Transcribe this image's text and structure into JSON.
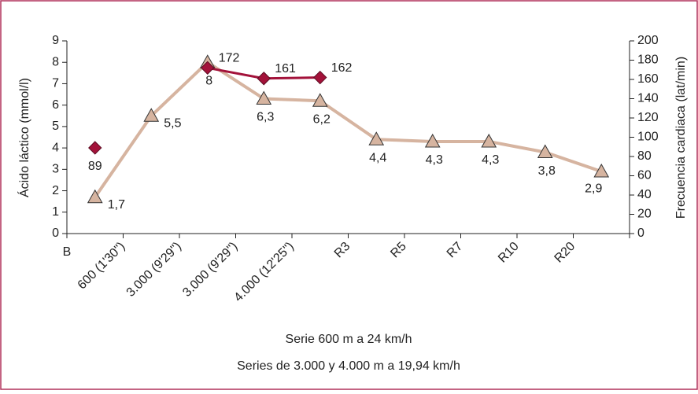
{
  "chart_data": {
    "type": "line",
    "categories": [
      "B",
      "600 (1'30\")",
      "3.000 (9'29\")",
      "3.000 (9'29\")",
      "4.000 (12'25\")",
      "R3",
      "R5",
      "R7",
      "R10",
      "R20"
    ],
    "ylabel": "Ácido láctico (mmol/l)",
    "y2label": "Frecuencia cardiaca (lat/min)",
    "ylim": [
      0,
      9
    ],
    "yticks": [
      0,
      1,
      2,
      3,
      4,
      5,
      6,
      7,
      8,
      9
    ],
    "y2lim": [
      0,
      200
    ],
    "y2ticks": [
      0,
      20,
      40,
      60,
      80,
      100,
      120,
      140,
      160,
      180,
      200
    ],
    "series": [
      {
        "name": "Ácido láctico",
        "color": "#d6b4a0",
        "marker": "triangle",
        "values": [
          1.7,
          5.5,
          8,
          6.3,
          6.2,
          4.4,
          4.3,
          4.3,
          3.8,
          2.9
        ],
        "value_labels": [
          "1,7",
          "5,5",
          "8",
          "6,3",
          "6,2",
          "4,4",
          "4,3",
          "4,3",
          "3,8",
          "2,9"
        ]
      },
      {
        "name": "Frecuencia cardiaca",
        "color": "#a3123a",
        "marker": "diamond",
        "axis": "y2",
        "values": [
          89,
          null,
          172,
          161,
          162,
          null,
          null,
          null,
          null,
          null
        ]
      }
    ],
    "notes": [
      "Serie 600 m a 24 km/h",
      "Series de 3.000 y 4.000 m a 19,94 km/h"
    ]
  }
}
